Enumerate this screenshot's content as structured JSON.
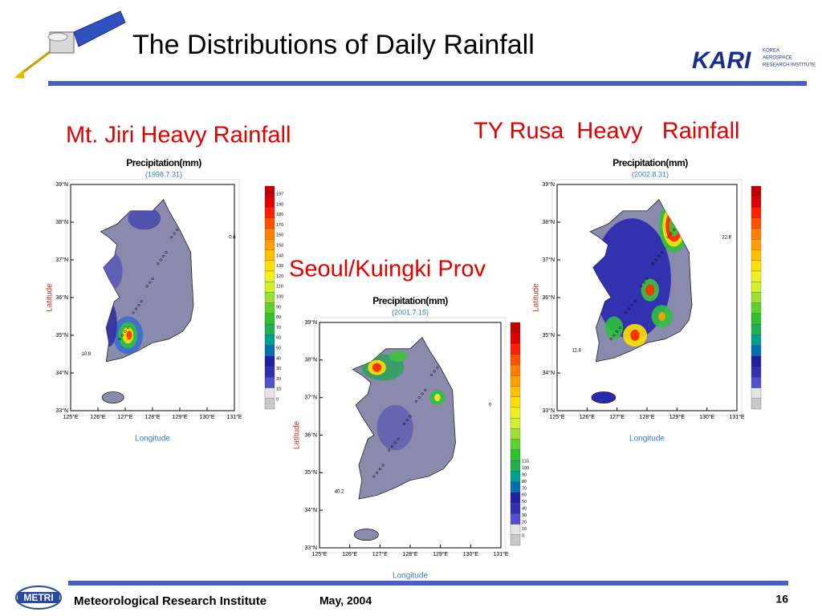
{
  "header": {
    "title": "The Distributions of Daily Rainfall",
    "logo": "KARI",
    "logo_lines": [
      "KOREA",
      "AEROSPACE",
      "RESEARCH INSTITUTE"
    ]
  },
  "panels": [
    {
      "heading": "Mt. Jiri Heavy Rainfall",
      "map_title": "Precipitation(mm)",
      "date": "(1998.7.31)",
      "ylabel": "Latitude",
      "xlabel": "Longitude",
      "lat_ticks": [
        "39°N",
        "38°N",
        "37°N",
        "36°N",
        "35°N",
        "34°N",
        "33°N"
      ],
      "lon_ticks": [
        "125°E",
        "126°E",
        "127°E",
        "128°E",
        "129°E",
        "130°E",
        "131°E"
      ],
      "colorbar_labels": [
        "197",
        "190",
        "180",
        "170",
        "160",
        "150",
        "140",
        "130",
        "120",
        "110",
        "100",
        "90",
        "80",
        "70",
        "60",
        "50",
        "40",
        "30",
        "20",
        "10",
        "0"
      ],
      "notes": [
        "0.6",
        "10.8"
      ]
    },
    {
      "heading": "Seoul/Kuingki Prov",
      "map_title": "Precipitation(mm)",
      "date": "(2001.7.15)",
      "ylabel": "Latitude",
      "xlabel": "Longitude",
      "lat_ticks": [
        "39°N",
        "38°N",
        "37°N",
        "36°N",
        "35°N",
        "34°N",
        "33°N"
      ],
      "lon_ticks": [
        "125°E",
        "126°E",
        "127°E",
        "128°E",
        "129°E",
        "130°E",
        "131°E"
      ],
      "colorbar_labels": [
        "110",
        "100",
        "90",
        "80",
        "70",
        "60",
        "50",
        "40",
        "30",
        "20",
        "10",
        "0"
      ],
      "notes": [
        "0",
        "40.2"
      ]
    },
    {
      "heading": "TY Rusa  Heavy   Rainfall",
      "map_title": "Precipitation(mm)",
      "date": "(2002.8.31)",
      "ylabel": "Latitude",
      "xlabel": "Longitude",
      "lat_ticks": [
        "39°N",
        "38°N",
        "37°N",
        "36°N",
        "35°N",
        "34°N",
        "33°N"
      ],
      "lon_ticks": [
        "125°E",
        "126°E",
        "127°E",
        "128°E",
        "129°E",
        "130°E",
        "131°E"
      ],
      "colorbar_labels": [],
      "notes": [
        "22.8",
        "11.8"
      ]
    }
  ],
  "footer": {
    "logo": "METRI",
    "institute": "Meteorological Research Institute",
    "date": "May, 2004",
    "page": "16"
  }
}
